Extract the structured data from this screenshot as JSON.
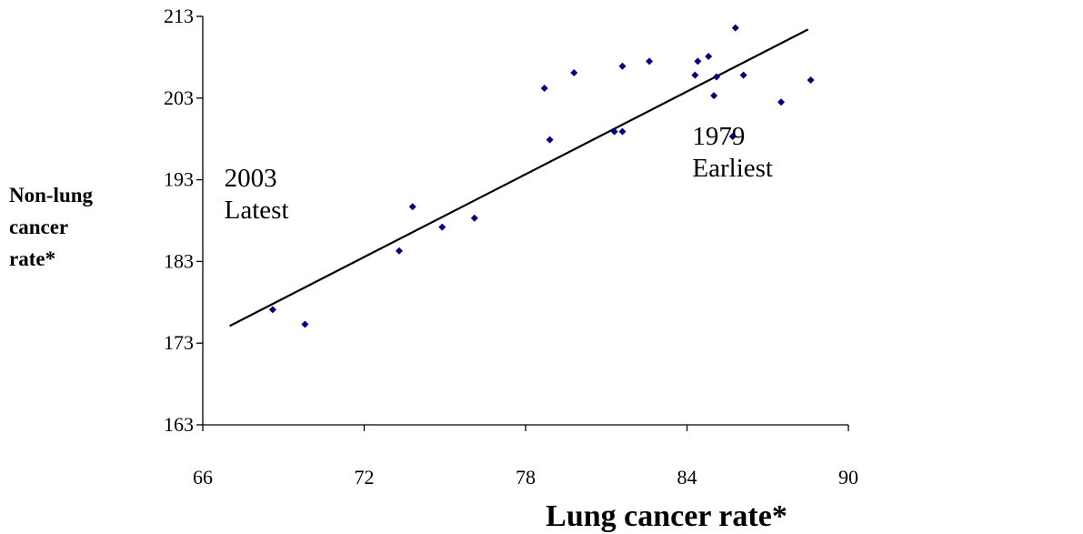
{
  "chart_data": {
    "type": "scatter",
    "title": "",
    "xlabel": "Lung cancer rate*",
    "ylabel_lines": [
      "Non-lung",
      "cancer",
      "rate*"
    ],
    "xlim": [
      66,
      90
    ],
    "ylim": [
      163,
      213
    ],
    "xticks": [
      66,
      72,
      78,
      84,
      90
    ],
    "yticks": [
      163,
      173,
      183,
      193,
      203,
      213
    ],
    "grid": false,
    "legend": "none",
    "series": [
      {
        "points": [
          [
            68.6,
            177.1
          ],
          [
            69.8,
            175.3
          ],
          [
            73.3,
            184.3
          ],
          [
            73.8,
            189.7
          ],
          [
            74.9,
            187.2
          ],
          [
            76.1,
            188.3
          ],
          [
            78.7,
            204.2
          ],
          [
            78.9,
            197.9
          ],
          [
            79.8,
            206.1
          ],
          [
            81.3,
            198.9
          ],
          [
            81.6,
            206.9
          ],
          [
            81.6,
            198.9
          ],
          [
            82.6,
            207.5
          ],
          [
            84.3,
            205.8
          ],
          [
            84.4,
            207.5
          ],
          [
            84.8,
            208.1
          ],
          [
            85.0,
            203.3
          ],
          [
            85.1,
            205.6
          ],
          [
            85.7,
            198.3
          ],
          [
            85.8,
            211.6
          ],
          [
            86.1,
            205.8
          ],
          [
            87.5,
            202.5
          ],
          [
            88.6,
            205.2
          ]
        ],
        "color": "#000080"
      }
    ],
    "trendline": {
      "x": [
        67.0,
        88.5
      ],
      "y": [
        175.1,
        211.4
      ],
      "color": "#000000"
    },
    "annotations": [
      {
        "lines": [
          "2003",
          "Latest"
        ],
        "x": 66.8,
        "y": 192.2
      },
      {
        "lines": [
          "1979",
          "Earliest"
        ],
        "x": 84.2,
        "y": 197.3
      }
    ]
  }
}
